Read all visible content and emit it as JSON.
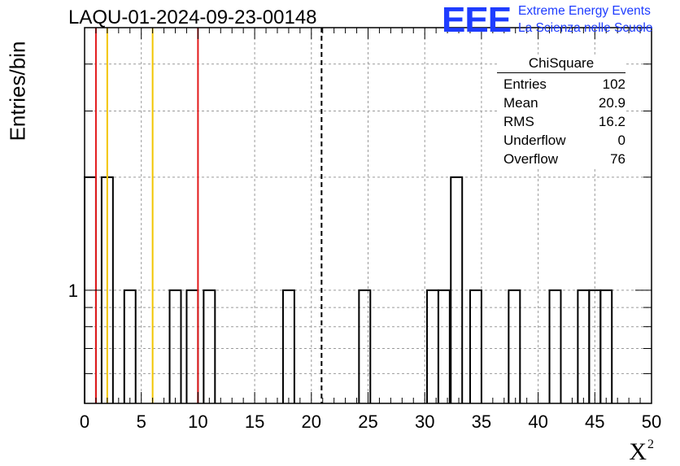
{
  "title": "LAQU-01-2024-09-23-00148",
  "logo": {
    "mark": "EEE",
    "line1": "Extreme Energy Events",
    "line2": "La Scienza nelle Scuole"
  },
  "stats": {
    "title": "ChiSquare",
    "rows": [
      {
        "label": "Entries",
        "value": "102"
      },
      {
        "label": "Mean",
        "value": "20.9"
      },
      {
        "label": "RMS",
        "value": "16.2"
      },
      {
        "label": "Underflow",
        "value": "0"
      },
      {
        "label": "Overflow",
        "value": "76"
      }
    ]
  },
  "chart_data": {
    "type": "bar",
    "title": "LAQU-01-2024-09-23-00148",
    "xlabel": "X",
    "xlabel_superscript": "2",
    "ylabel": "Entries/bin",
    "xlim": [
      0,
      50
    ],
    "ylim": [
      0.5,
      5
    ],
    "y_scale": "log",
    "grid": true,
    "bin_width": 1,
    "x_ticks": [
      "0",
      "5",
      "10",
      "15",
      "20",
      "25",
      "30",
      "35",
      "40",
      "45",
      "50"
    ],
    "y_ticks": [
      "1"
    ],
    "bins": [
      {
        "x": 0,
        "count": 2
      },
      {
        "x": 1.5,
        "count": 2
      },
      {
        "x": 3.5,
        "count": 1
      },
      {
        "x": 7.5,
        "count": 1
      },
      {
        "x": 9,
        "count": 1
      },
      {
        "x": 10.5,
        "count": 1
      },
      {
        "x": 17.5,
        "count": 1
      },
      {
        "x": 24.2,
        "count": 1
      },
      {
        "x": 30.2,
        "count": 1
      },
      {
        "x": 31.2,
        "count": 1
      },
      {
        "x": 32.3,
        "count": 2
      },
      {
        "x": 34,
        "count": 1
      },
      {
        "x": 37.4,
        "count": 1
      },
      {
        "x": 41,
        "count": 1
      },
      {
        "x": 43.5,
        "count": 1
      },
      {
        "x": 44.5,
        "count": 1
      },
      {
        "x": 45.5,
        "count": 1
      }
    ],
    "markers": [
      {
        "x": 1,
        "color": "#e31a1c",
        "style": "solid"
      },
      {
        "x": 2,
        "color": "#f2c500",
        "style": "solid"
      },
      {
        "x": 6,
        "color": "#f2c500",
        "style": "solid"
      },
      {
        "x": 10,
        "color": "#e31a1c",
        "style": "solid"
      },
      {
        "x": 20.9,
        "color": "#000000",
        "style": "dashed"
      }
    ]
  }
}
